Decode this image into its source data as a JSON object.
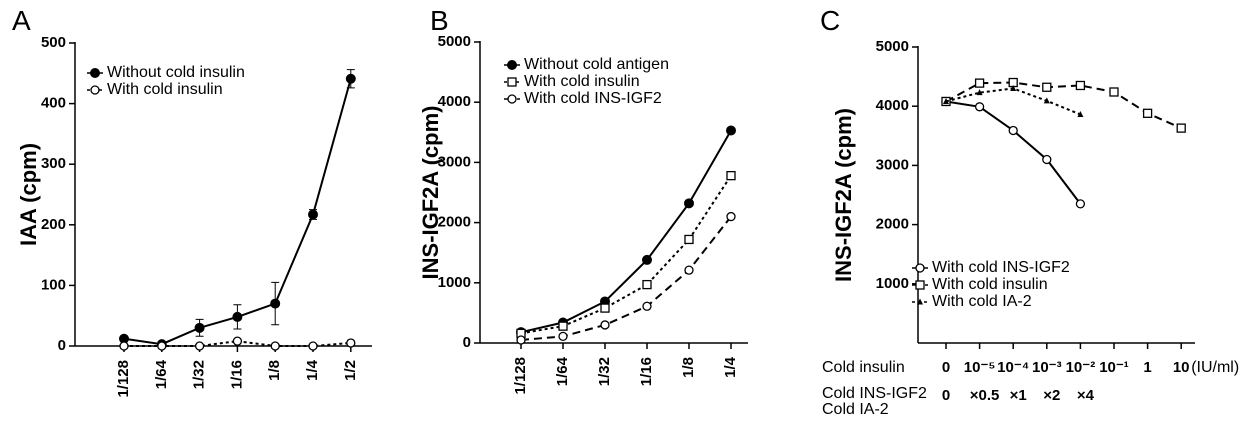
{
  "chart_data": [
    {
      "type": "line",
      "panel_label": "A",
      "y_label": "IAA (cpm)",
      "categories": [
        "1/128",
        "1/64",
        "1/32",
        "1/16",
        "1/8",
        "1/4",
        "1/2"
      ],
      "ylim": [
        0,
        500
      ],
      "yticks": [
        0,
        100,
        200,
        300,
        400,
        500
      ],
      "series": [
        {
          "name": "Without cold insulin",
          "color": "#000000",
          "marker": "filled-circle",
          "dash": "solid",
          "values": [
            12,
            3,
            30,
            48,
            70,
            217,
            441
          ],
          "errors": [
            4,
            2,
            14,
            20,
            35,
            8,
            15
          ]
        },
        {
          "name": "With cold insulin",
          "color": "#000000",
          "marker": "open-circle",
          "dash": "dotted",
          "values": [
            0,
            0,
            0,
            8,
            0,
            0,
            5
          ]
        }
      ]
    },
    {
      "type": "line",
      "panel_label": "B",
      "y_label": "INS-IGF2A (cpm)",
      "categories": [
        "1/128",
        "1/64",
        "1/32",
        "1/16",
        "1/8",
        "1/4"
      ],
      "ylim": [
        0,
        5000
      ],
      "yticks": [
        0,
        1000,
        2000,
        3000,
        4000,
        5000
      ],
      "series": [
        {
          "name": "Without cold antigen",
          "color": "#000000",
          "marker": "filled-circle",
          "dash": "solid",
          "values": [
            180,
            340,
            690,
            1380,
            2320,
            3530
          ]
        },
        {
          "name": "With cold insulin",
          "color": "#000000",
          "marker": "open-square",
          "dash": "dotted",
          "values": [
            160,
            280,
            580,
            970,
            1720,
            2780
          ]
        },
        {
          "name": "With cold INS-IGF2",
          "color": "#000000",
          "marker": "open-circle",
          "dash": "dashed",
          "values": [
            50,
            110,
            300,
            610,
            1210,
            2100
          ]
        }
      ]
    },
    {
      "type": "line",
      "panel_label": "C",
      "y_label": "INS-IGF2A (cpm)",
      "row_label": "Cold insulin",
      "unit": "(IU/ml)",
      "categories": [
        "0",
        "10⁻⁵",
        "10⁻⁴",
        "10⁻³",
        "10⁻²",
        "10⁻¹",
        "1",
        "10"
      ],
      "row2_labels": [
        "Cold INS-IGF2",
        "Cold IA-2"
      ],
      "categories2": [
        "0",
        "×0.5",
        "×1",
        "×2",
        "×4"
      ],
      "ylim": [
        0,
        5000
      ],
      "yticks": [
        1000,
        2000,
        3000,
        4000,
        5000
      ],
      "series": [
        {
          "name": "With cold INS-IGF2",
          "color": "#000000",
          "marker": "open-circle",
          "dash": "solid",
          "values": [
            4080,
            3990,
            3590,
            3100,
            2350,
            null,
            null,
            null
          ]
        },
        {
          "name": "With cold insulin",
          "color": "#000000",
          "marker": "open-square",
          "dash": "dashed",
          "values": [
            4080,
            4390,
            4400,
            4320,
            4350,
            4240,
            3880,
            3630
          ]
        },
        {
          "name": "With cold IA-2",
          "color": "#000000",
          "marker": "triangle",
          "dash": "dotted",
          "values": [
            4080,
            4230,
            4300,
            4090,
            3860,
            null,
            null,
            null
          ]
        }
      ]
    }
  ]
}
